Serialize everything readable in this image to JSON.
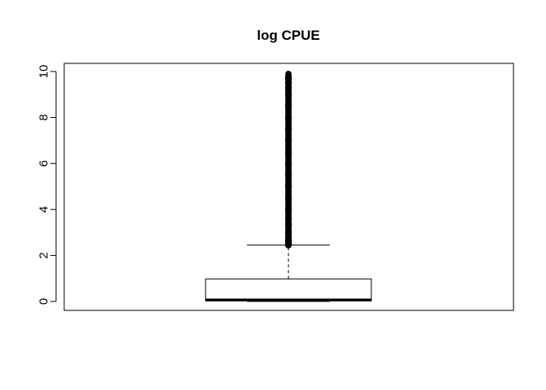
{
  "chart_data": {
    "type": "boxplot",
    "title": "log CPUE",
    "xlabel": "",
    "ylabel": "",
    "ylim": [
      -0.4,
      10.3
    ],
    "yticks": [
      0,
      2,
      4,
      6,
      8,
      10
    ],
    "ytick_labels": [
      "0",
      "2",
      "4",
      "6",
      "8",
      "10"
    ],
    "grid": false,
    "box": {
      "min": 0.0,
      "q1": 0.02,
      "median": 0.07,
      "q3": 0.98,
      "whisker_low": 0.0,
      "whisker_high": 2.45
    },
    "outliers": {
      "from": 2.45,
      "to": 9.9,
      "note_density": "continuous dense band of outlier points"
    },
    "colors": {
      "box_fill": "#ffffff",
      "stroke": "#000000"
    }
  }
}
